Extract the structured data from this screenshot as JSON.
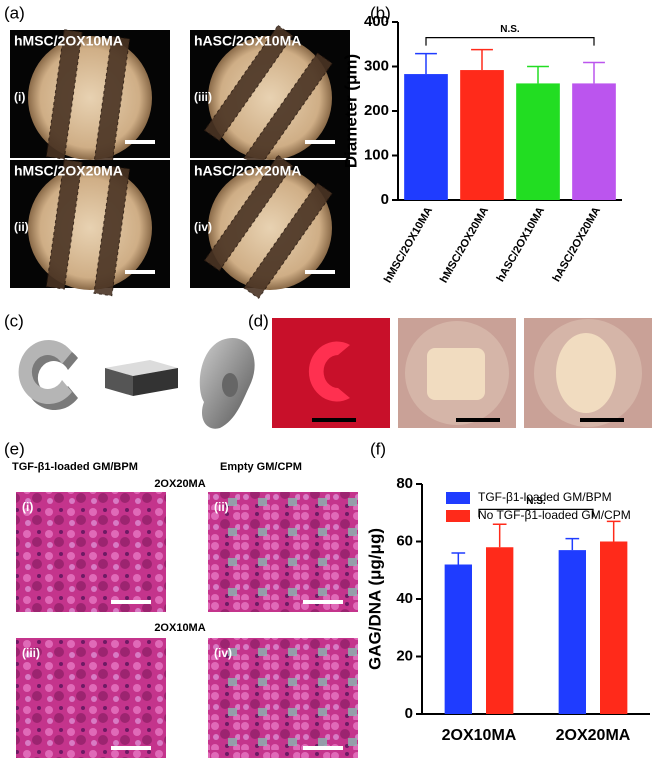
{
  "panel_labels": [
    "(a)",
    "(b)",
    "(c)",
    "(d)",
    "(e)",
    "(f)"
  ],
  "micrographs": [
    {
      "title": "hMSC/2OX10MA",
      "label": "(i)"
    },
    {
      "title": "hASC/2OX10MA",
      "label": "(iii)"
    },
    {
      "title": "hMSC/2OX20MA",
      "label": "(ii)"
    },
    {
      "title": "hASC/2OX20MA",
      "label": "(iv)"
    }
  ],
  "histology": {
    "col_headers": [
      "TGF-β1-loaded GM/BPM",
      "Empty GM/CPM"
    ],
    "row_headers": [
      "2OX20MA",
      "2OX10MA"
    ],
    "labels": [
      "(i)",
      "(ii)",
      "(iii)",
      "(iv)"
    ]
  },
  "chart_data": [
    {
      "type": "bar",
      "ylabel": "Diameter (μm)",
      "annotation": "N.S.",
      "categories": [
        "hMSC/2OX10MA",
        "hMSC/2OX20MA",
        "hASC/2OX10MA",
        "hASC/2OX20MA"
      ],
      "values": [
        283,
        292,
        262,
        262
      ],
      "errors": [
        46,
        46,
        38,
        47
      ],
      "colors": [
        "#1f3cff",
        "#ff2a1a",
        "#22dd22",
        "#bb55ee"
      ],
      "ylim": [
        0,
        400
      ],
      "yticks": [
        0,
        100,
        200,
        300,
        400
      ]
    },
    {
      "type": "bar",
      "ylabel": "GAG/DNA (μg/μg)",
      "annotation": "N.S.",
      "categories": [
        "2OX10MA",
        "2OX20MA"
      ],
      "series": [
        {
          "name": "TGF-β1-loaded GM/BPM",
          "color": "#1f3cff",
          "values": [
            52,
            57
          ],
          "errors": [
            4,
            4
          ]
        },
        {
          "name": "No TGF-β1-loaded GM/CPM",
          "color": "#ff2a1a",
          "values": [
            58,
            60
          ],
          "errors": [
            8,
            7
          ]
        }
      ],
      "ylim": [
        0,
        80
      ],
      "yticks": [
        0,
        20,
        40,
        60,
        80
      ],
      "legend": "upper left"
    }
  ]
}
